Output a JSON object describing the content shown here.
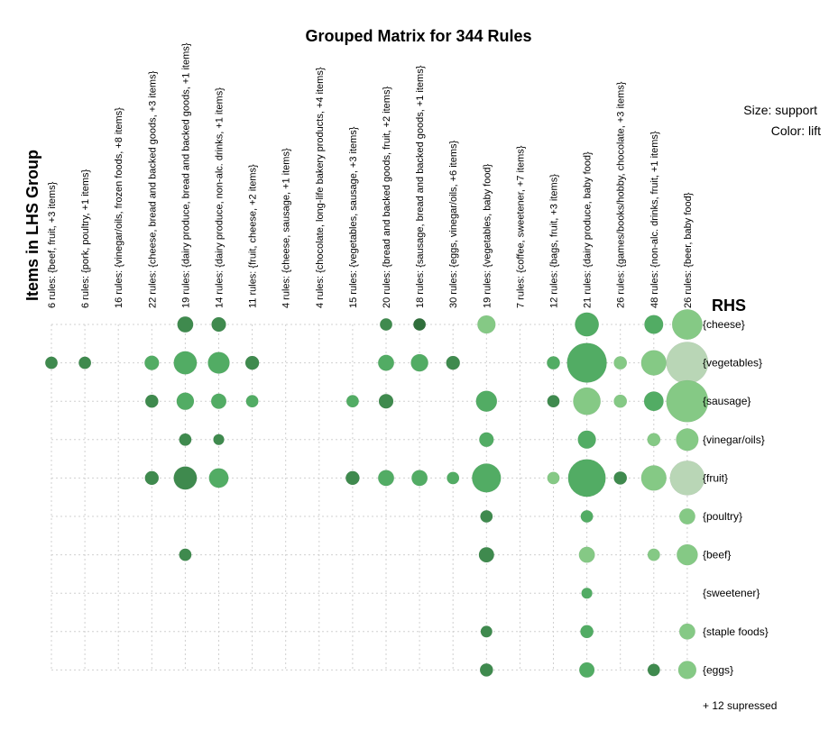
{
  "chart_data": {
    "type": "scatter",
    "title": "Grouped Matrix for 344 Rules",
    "xlabel": "Items in LHS Group",
    "ylabel": "RHS",
    "legend": {
      "size": "Size: support",
      "color": "Color: lift"
    },
    "footnote": "+ 12 supressed",
    "columns": [
      "6 rules: {beef, fruit, +3 items}",
      "6 rules: {pork, poultry, +1 items}",
      "16 rules: {vinegar/oils, frozen foods, +8 items}",
      "22 rules: {cheese, bread and backed goods, +3 items}",
      "19 rules: {dairy produce, bread and backed goods, +1 items}",
      "14 rules: {dairy produce, non-alc. drinks, +1 items}",
      "11 rules: {fruit, cheese, +2 items}",
      "4 rules: {cheese, sausage, +1 items}",
      "4 rules: {chocolate, long-life bakery products, +4 items}",
      "15 rules: {vegetables, sausage, +3 items}",
      "20 rules: {bread and backed goods, fruit, +2 items}",
      "18 rules: {sausage, bread and backed goods, +1 items}",
      "30 rules: {eggs, vinegar/oils, +6 items}",
      "19 rules: {vegetables, baby food}",
      "7 rules: {coffee, sweetener, +7 items}",
      "12 rules: {bags, fruit, +3 items}",
      "21 rules: {dairy produce, baby food}",
      "26 rules: {games/books/hobby, chocolate, +3 items}",
      "48 rules: {non-alc. drinks, fruit, +1 items}",
      "26 rules: {beer, baby food}"
    ],
    "rows": [
      "{cheese}",
      "{vegetables}",
      "{sausage}",
      "{vinegar/oils}",
      "{fruit}",
      "{poultry}",
      "{beef}",
      "{sweetener}",
      "{staple foods}",
      "{eggs}"
    ],
    "colors": {
      "dark": "#3f8a4e",
      "medium": "#52ac64",
      "light": "#85c985",
      "pale": "#b9d6b6",
      "grid": "#d0d0d0"
    },
    "points": [
      {
        "col": 4,
        "row": 0,
        "size": 0.22,
        "color": "dark"
      },
      {
        "col": 5,
        "row": 0,
        "size": 0.2,
        "color": "dark"
      },
      {
        "col": 10,
        "row": 0,
        "size": 0.17,
        "color": "dark"
      },
      {
        "col": 11,
        "row": 0,
        "size": 0.17,
        "color": "darkest"
      },
      {
        "col": 13,
        "row": 0,
        "size": 0.25,
        "color": "light"
      },
      {
        "col": 16,
        "row": 0,
        "size": 0.33,
        "color": "medium"
      },
      {
        "col": 18,
        "row": 0,
        "size": 0.26,
        "color": "medium"
      },
      {
        "col": 19,
        "row": 0,
        "size": 0.42,
        "color": "light"
      },
      {
        "col": 0,
        "row": 1,
        "size": 0.17,
        "color": "dark"
      },
      {
        "col": 1,
        "row": 1,
        "size": 0.17,
        "color": "dark"
      },
      {
        "col": 3,
        "row": 1,
        "size": 0.2,
        "color": "medium"
      },
      {
        "col": 4,
        "row": 1,
        "size": 0.32,
        "color": "medium"
      },
      {
        "col": 5,
        "row": 1,
        "size": 0.3,
        "color": "medium"
      },
      {
        "col": 6,
        "row": 1,
        "size": 0.19,
        "color": "dark"
      },
      {
        "col": 10,
        "row": 1,
        "size": 0.22,
        "color": "medium"
      },
      {
        "col": 11,
        "row": 1,
        "size": 0.24,
        "color": "medium"
      },
      {
        "col": 12,
        "row": 1,
        "size": 0.19,
        "color": "dark"
      },
      {
        "col": 15,
        "row": 1,
        "size": 0.18,
        "color": "medium"
      },
      {
        "col": 16,
        "row": 1,
        "size": 0.55,
        "color": "medium"
      },
      {
        "col": 17,
        "row": 1,
        "size": 0.18,
        "color": "light"
      },
      {
        "col": 18,
        "row": 1,
        "size": 0.35,
        "color": "light"
      },
      {
        "col": 19,
        "row": 1,
        "size": 0.58,
        "color": "pale"
      },
      {
        "col": 3,
        "row": 2,
        "size": 0.18,
        "color": "dark"
      },
      {
        "col": 4,
        "row": 2,
        "size": 0.24,
        "color": "medium"
      },
      {
        "col": 5,
        "row": 2,
        "size": 0.21,
        "color": "medium"
      },
      {
        "col": 6,
        "row": 2,
        "size": 0.17,
        "color": "medium"
      },
      {
        "col": 9,
        "row": 2,
        "size": 0.17,
        "color": "medium"
      },
      {
        "col": 10,
        "row": 2,
        "size": 0.2,
        "color": "dark"
      },
      {
        "col": 13,
        "row": 2,
        "size": 0.29,
        "color": "medium"
      },
      {
        "col": 15,
        "row": 2,
        "size": 0.17,
        "color": "dark"
      },
      {
        "col": 16,
        "row": 2,
        "size": 0.38,
        "color": "light"
      },
      {
        "col": 17,
        "row": 2,
        "size": 0.18,
        "color": "light"
      },
      {
        "col": 18,
        "row": 2,
        "size": 0.27,
        "color": "medium"
      },
      {
        "col": 19,
        "row": 2,
        "size": 0.58,
        "color": "light"
      },
      {
        "col": 4,
        "row": 3,
        "size": 0.17,
        "color": "dark"
      },
      {
        "col": 5,
        "row": 3,
        "size": 0.15,
        "color": "dark"
      },
      {
        "col": 13,
        "row": 3,
        "size": 0.2,
        "color": "medium"
      },
      {
        "col": 16,
        "row": 3,
        "size": 0.25,
        "color": "medium"
      },
      {
        "col": 18,
        "row": 3,
        "size": 0.18,
        "color": "light"
      },
      {
        "col": 19,
        "row": 3,
        "size": 0.31,
        "color": "light"
      },
      {
        "col": 3,
        "row": 4,
        "size": 0.19,
        "color": "dark"
      },
      {
        "col": 4,
        "row": 4,
        "size": 0.32,
        "color": "dark"
      },
      {
        "col": 5,
        "row": 4,
        "size": 0.27,
        "color": "medium"
      },
      {
        "col": 9,
        "row": 4,
        "size": 0.19,
        "color": "dark"
      },
      {
        "col": 10,
        "row": 4,
        "size": 0.22,
        "color": "medium"
      },
      {
        "col": 11,
        "row": 4,
        "size": 0.22,
        "color": "medium"
      },
      {
        "col": 12,
        "row": 4,
        "size": 0.17,
        "color": "medium"
      },
      {
        "col": 13,
        "row": 4,
        "size": 0.4,
        "color": "medium"
      },
      {
        "col": 15,
        "row": 4,
        "size": 0.17,
        "color": "light"
      },
      {
        "col": 16,
        "row": 4,
        "size": 0.52,
        "color": "medium"
      },
      {
        "col": 17,
        "row": 4,
        "size": 0.18,
        "color": "dark"
      },
      {
        "col": 18,
        "row": 4,
        "size": 0.35,
        "color": "light"
      },
      {
        "col": 19,
        "row": 4,
        "size": 0.48,
        "color": "pale"
      },
      {
        "col": 13,
        "row": 5,
        "size": 0.17,
        "color": "dark"
      },
      {
        "col": 16,
        "row": 5,
        "size": 0.17,
        "color": "medium"
      },
      {
        "col": 19,
        "row": 5,
        "size": 0.22,
        "color": "light"
      },
      {
        "col": 4,
        "row": 6,
        "size": 0.17,
        "color": "dark"
      },
      {
        "col": 13,
        "row": 6,
        "size": 0.21,
        "color": "dark"
      },
      {
        "col": 16,
        "row": 6,
        "size": 0.22,
        "color": "light"
      },
      {
        "col": 18,
        "row": 6,
        "size": 0.17,
        "color": "light"
      },
      {
        "col": 19,
        "row": 6,
        "size": 0.29,
        "color": "light"
      },
      {
        "col": 16,
        "row": 7,
        "size": 0.15,
        "color": "medium"
      },
      {
        "col": 13,
        "row": 8,
        "size": 0.16,
        "color": "dark"
      },
      {
        "col": 16,
        "row": 8,
        "size": 0.18,
        "color": "medium"
      },
      {
        "col": 19,
        "row": 8,
        "size": 0.22,
        "color": "light"
      },
      {
        "col": 13,
        "row": 9,
        "size": 0.18,
        "color": "dark"
      },
      {
        "col": 16,
        "row": 9,
        "size": 0.21,
        "color": "medium"
      },
      {
        "col": 18,
        "row": 9,
        "size": 0.17,
        "color": "dark"
      },
      {
        "col": 19,
        "row": 9,
        "size": 0.25,
        "color": "light"
      }
    ]
  }
}
